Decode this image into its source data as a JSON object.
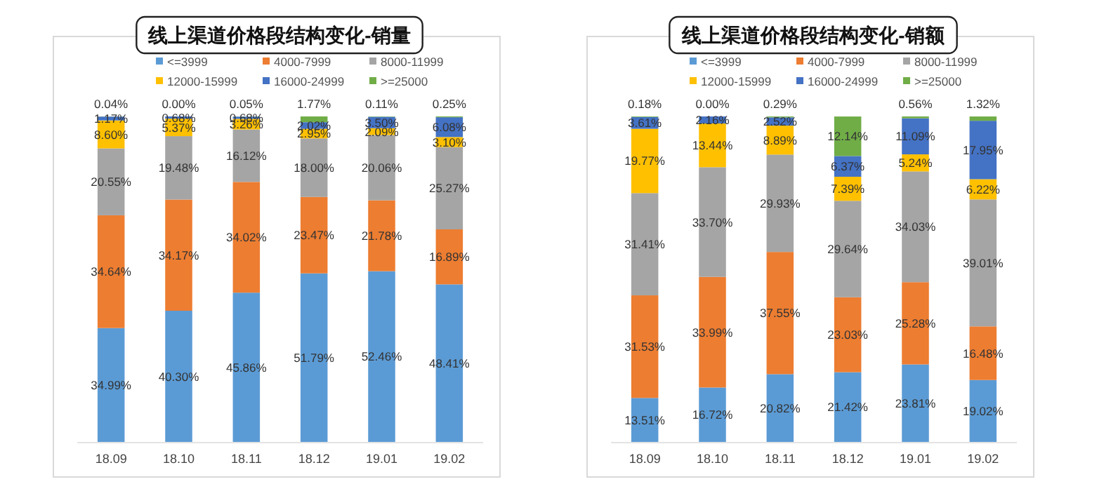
{
  "chart_data": [
    {
      "type": "bar",
      "stacked": true,
      "title": "线上渠道价格段结构变化-销量",
      "legend": "top",
      "categories": [
        "18.09",
        "18.10",
        "18.11",
        "18.12",
        "19.01",
        "19.02"
      ],
      "series": [
        {
          "name": "<=3999",
          "color": "#5b9bd5",
          "values": [
            34.99,
            40.3,
            45.86,
            51.79,
            52.46,
            48.41
          ],
          "value_labels": [
            "34.99%",
            "40.30%",
            "45.86%",
            "51.79%",
            "52.46%",
            "48.41%"
          ]
        },
        {
          "name": "4000-7999",
          "color": "#ed7d31",
          "values": [
            34.64,
            34.17,
            34.02,
            23.47,
            21.78,
            16.89
          ],
          "value_labels": [
            "34.64%",
            "34.17%",
            "34.02%",
            "23.47%",
            "21.78%",
            "16.89%"
          ]
        },
        {
          "name": "8000-11999",
          "color": "#a5a5a5",
          "values": [
            20.55,
            19.48,
            16.12,
            18.0,
            20.06,
            25.27
          ],
          "value_labels": [
            "20.55%",
            "19.48%",
            "16.12%",
            "18.00%",
            "20.06%",
            "25.27%"
          ]
        },
        {
          "name": "12000-15999",
          "color": "#ffc000",
          "values": [
            8.6,
            5.37,
            3.26,
            2.95,
            2.09,
            3.1
          ],
          "value_labels": [
            "8.60%",
            "5.37%",
            "3.26%",
            "2.95%",
            "2.09%",
            "3.10%"
          ]
        },
        {
          "name": "16000-24999",
          "color": "#4472c4",
          "values": [
            1.17,
            0.68,
            0.68,
            2.02,
            3.5,
            6.08
          ],
          "value_labels": [
            "1.17%",
            "0.68%",
            "0.68%",
            "2.02%",
            "3.50%",
            "6.08%"
          ]
        },
        {
          "name": ">=25000",
          "color": "#70ad47",
          "values": [
            0.04,
            0.0,
            0.05,
            1.77,
            0.11,
            0.25
          ],
          "value_labels": [
            "0.04%",
            "0.00%",
            "0.05%",
            "1.77%",
            "0.11%",
            "0.25%"
          ]
        }
      ]
    },
    {
      "type": "bar",
      "stacked": true,
      "title": "线上渠道价格段结构变化-销额",
      "legend": "top",
      "categories": [
        "18.09",
        "18.10",
        "18.11",
        "18.12",
        "19.01",
        "19.02"
      ],
      "series": [
        {
          "name": "<=3999",
          "color": "#5b9bd5",
          "values": [
            13.51,
            16.72,
            20.82,
            21.42,
            23.81,
            19.02
          ],
          "value_labels": [
            "13.51%",
            "16.72%",
            "20.82%",
            "21.42%",
            "23.81%",
            "19.02%"
          ]
        },
        {
          "name": "4000-7999",
          "color": "#ed7d31",
          "values": [
            31.53,
            33.99,
            37.55,
            23.03,
            25.28,
            16.48
          ],
          "value_labels": [
            "31.53%",
            "33.99%",
            "37.55%",
            "23.03%",
            "25.28%",
            "16.48%"
          ]
        },
        {
          "name": "8000-11999",
          "color": "#a5a5a5",
          "values": [
            31.41,
            33.7,
            29.93,
            29.64,
            34.03,
            39.01
          ],
          "value_labels": [
            "31.41%",
            "33.70%",
            "29.93%",
            "29.64%",
            "34.03%",
            "39.01%"
          ]
        },
        {
          "name": "12000-15999",
          "color": "#ffc000",
          "values": [
            19.77,
            13.44,
            8.89,
            7.39,
            5.24,
            6.22
          ],
          "value_labels": [
            "19.77%",
            "13.44%",
            "8.89%",
            "7.39%",
            "5.24%",
            "6.22%"
          ]
        },
        {
          "name": "16000-24999",
          "color": "#4472c4",
          "values": [
            3.61,
            2.16,
            2.52,
            6.37,
            11.09,
            17.95
          ],
          "value_labels": [
            "3.61%",
            "2.16%",
            "2.52%",
            "6.37%",
            "11.09%",
            "17.95%"
          ]
        },
        {
          "name": ">=25000",
          "color": "#70ad47",
          "values": [
            0.18,
            0.0,
            0.29,
            12.14,
            0.56,
            1.32
          ],
          "value_labels": [
            "0.18%",
            "0.00%",
            "0.29%",
            "12.14%",
            "0.56%",
            "1.32%"
          ]
        }
      ]
    }
  ]
}
